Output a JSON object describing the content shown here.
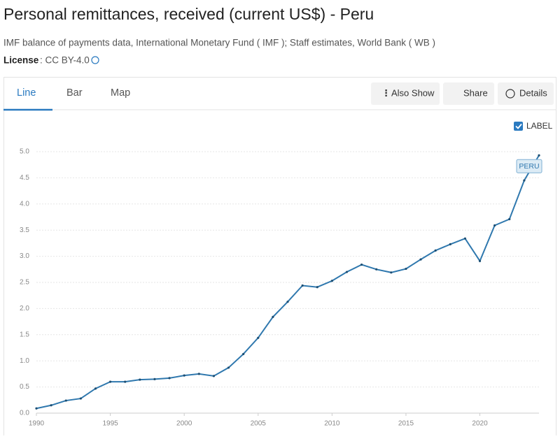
{
  "header": {
    "title": "Personal remittances, received (current US$) - Peru",
    "source": "IMF balance of payments data, International Monetary Fund ( IMF ); Staff estimates, World Bank ( WB )",
    "license_label": "License",
    "license_value": ": CC BY-4.0"
  },
  "tabs": [
    "Line",
    "Bar",
    "Map"
  ],
  "actions": [
    "Also Show",
    "Share",
    "Details"
  ],
  "label_toggle": "LABEL",
  "chart_data": {
    "type": "line",
    "x": [
      1990,
      1991,
      1992,
      1993,
      1994,
      1995,
      1996,
      1997,
      1998,
      1999,
      2000,
      2001,
      2002,
      2003,
      2004,
      2005,
      2006,
      2007,
      2008,
      2009,
      2010,
      2011,
      2012,
      2013,
      2014,
      2015,
      2016,
      2017,
      2018,
      2019,
      2020,
      2021,
      2022,
      2023,
      2024
    ],
    "series": [
      {
        "name": "PERU",
        "color": "#2f78ae",
        "values": [
          0.09,
          0.15,
          0.24,
          0.28,
          0.47,
          0.6,
          0.6,
          0.64,
          0.65,
          0.67,
          0.72,
          0.75,
          0.71,
          0.87,
          1.13,
          1.44,
          1.84,
          2.13,
          2.44,
          2.41,
          2.53,
          2.7,
          2.84,
          2.75,
          2.69,
          2.76,
          2.94,
          3.11,
          3.23,
          3.34,
          2.91,
          3.59,
          3.71,
          4.45,
          4.93
        ]
      }
    ],
    "xlim": [
      1990,
      2024
    ],
    "xticks": [
      1990,
      1995,
      2000,
      2005,
      2010,
      2015,
      2020
    ],
    "ylim": [
      0,
      5
    ],
    "yticks": [
      {
        "value": 0,
        "label": "0.0"
      },
      0.5,
      {
        "value": 1,
        "label": "1.0"
      },
      1.5,
      {
        "value": 2,
        "label": "2.0"
      },
      2.5,
      {
        "value": 3,
        "label": "3.0"
      },
      3.5,
      {
        "value": 4,
        "label": "4.0"
      },
      4.5,
      {
        "value": 5,
        "label": "5.0"
      }
    ],
    "grid": true
  }
}
